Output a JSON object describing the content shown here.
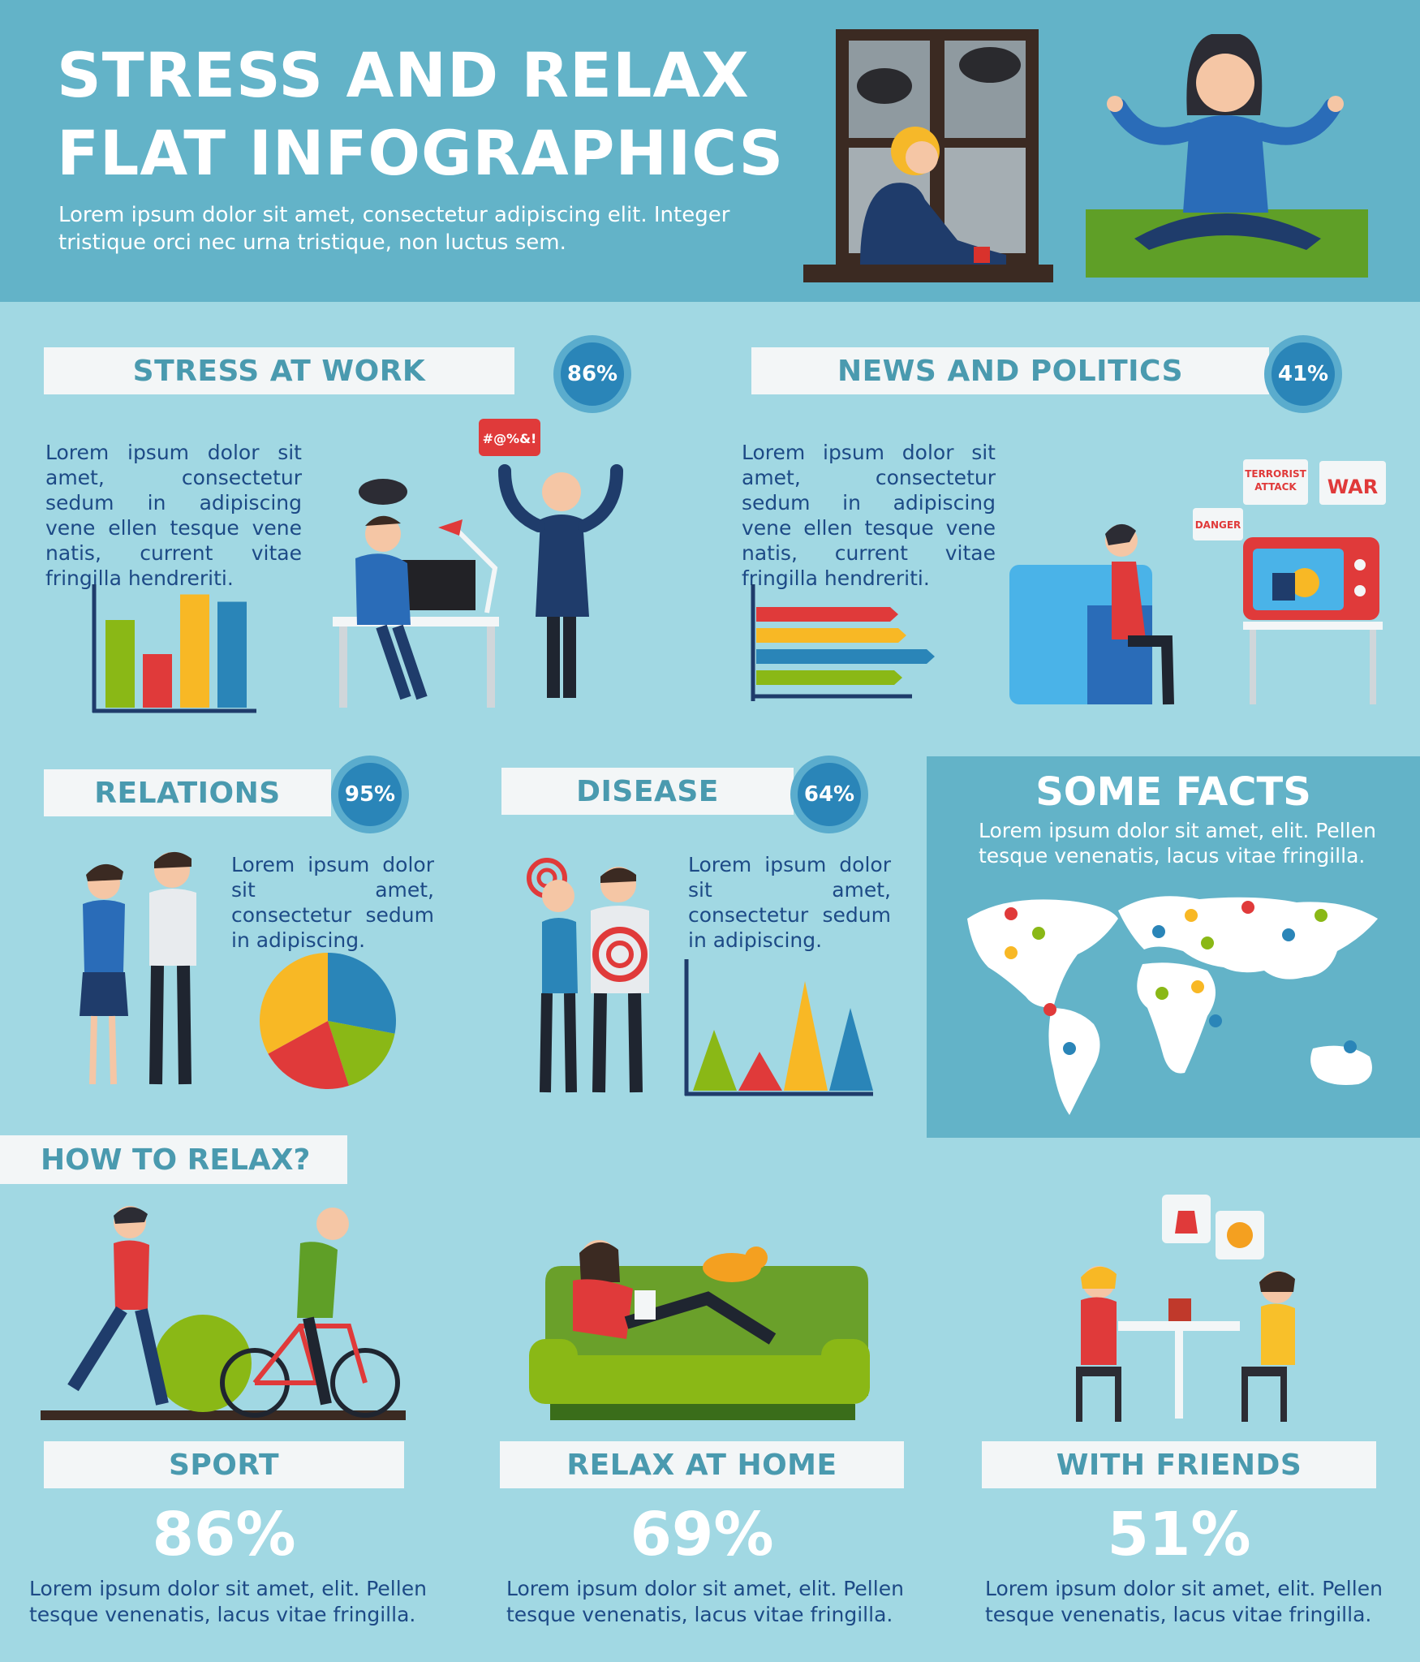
{
  "header": {
    "title_line1": "STRESS AND RELAX",
    "title_line2": "FLAT INFOGRAPHICS",
    "subtitle": "Lorem ipsum dolor sit amet, consectetur adipiscing elit. Integer tristique orci nec urna tristique, non luctus sem."
  },
  "sections": {
    "work": {
      "title": "STRESS AT WORK",
      "percent": "86%",
      "text": "Lorem ipsum dolor sit amet, consectetur sedum in adipiscing vene ellen tesque vene natis, current vitae fringilla hendreriti.",
      "speech": "#@%&!"
    },
    "news": {
      "title": "NEWS AND POLITICS",
      "percent": "41%",
      "text": "Lorem ipsum dolor sit amet, consectetur sedum in adipiscing vene ellen tesque vene natis, current vitae fringilla hendreriti.",
      "bubble1_l1": "TERRORIST",
      "bubble1_l2": "ATTACK",
      "bubble2": "WAR",
      "bubble3": "DANGER"
    },
    "relations": {
      "title": "RELATIONS",
      "percent": "95%",
      "text": "Lorem ipsum dolor sit amet, consectetur sedum in adipiscing."
    },
    "disease": {
      "title": "DISEASE",
      "percent": "64%",
      "text": "Lorem ipsum dolor sit amet, consectetur sedum in adipiscing."
    }
  },
  "facts": {
    "title": "SOME FACTS",
    "text": "Lorem ipsum dolor sit amet, elit. Pellen tesque venenatis, lacus vitae fringilla."
  },
  "relax": {
    "heading": "HOW TO RELAX?",
    "items": [
      {
        "label": "SPORT",
        "percent": "86%",
        "text": "Lorem ipsum dolor sit amet, elit. Pellen tesque venenatis, lacus vitae fringilla."
      },
      {
        "label": "RELAX AT HOME",
        "percent": "69%",
        "text": "Lorem ipsum dolor sit amet, elit. Pellen tesque venenatis, lacus vitae fringilla."
      },
      {
        "label": "WITH FRIENDS",
        "percent": "51%",
        "text": "Lorem ipsum dolor sit amet, elit. Pellen tesque venenatis, lacus vitae fringilla."
      }
    ]
  },
  "colors": {
    "header_bg": "#63b3c8",
    "page_bg": "#a1d8e3",
    "banner_bg": "#f3f6f7",
    "banner_text": "#4a9aaf",
    "badge": "#2a85b8",
    "body_text": "#1d4a86",
    "green": "#8ab816",
    "red": "#e03a3a",
    "yellow": "#f8b825",
    "blue": "#2a85b8"
  },
  "mini_charts": {
    "work_bars": [
      0.72,
      0.44,
      0.93,
      0.87
    ],
    "news_bars": [
      0.74,
      0.78,
      0.92,
      0.76
    ],
    "relations_pie": [
      0.28,
      0.17,
      0.22,
      0.33
    ],
    "disease_triangles": [
      0.5,
      0.32,
      0.9,
      0.68
    ]
  }
}
